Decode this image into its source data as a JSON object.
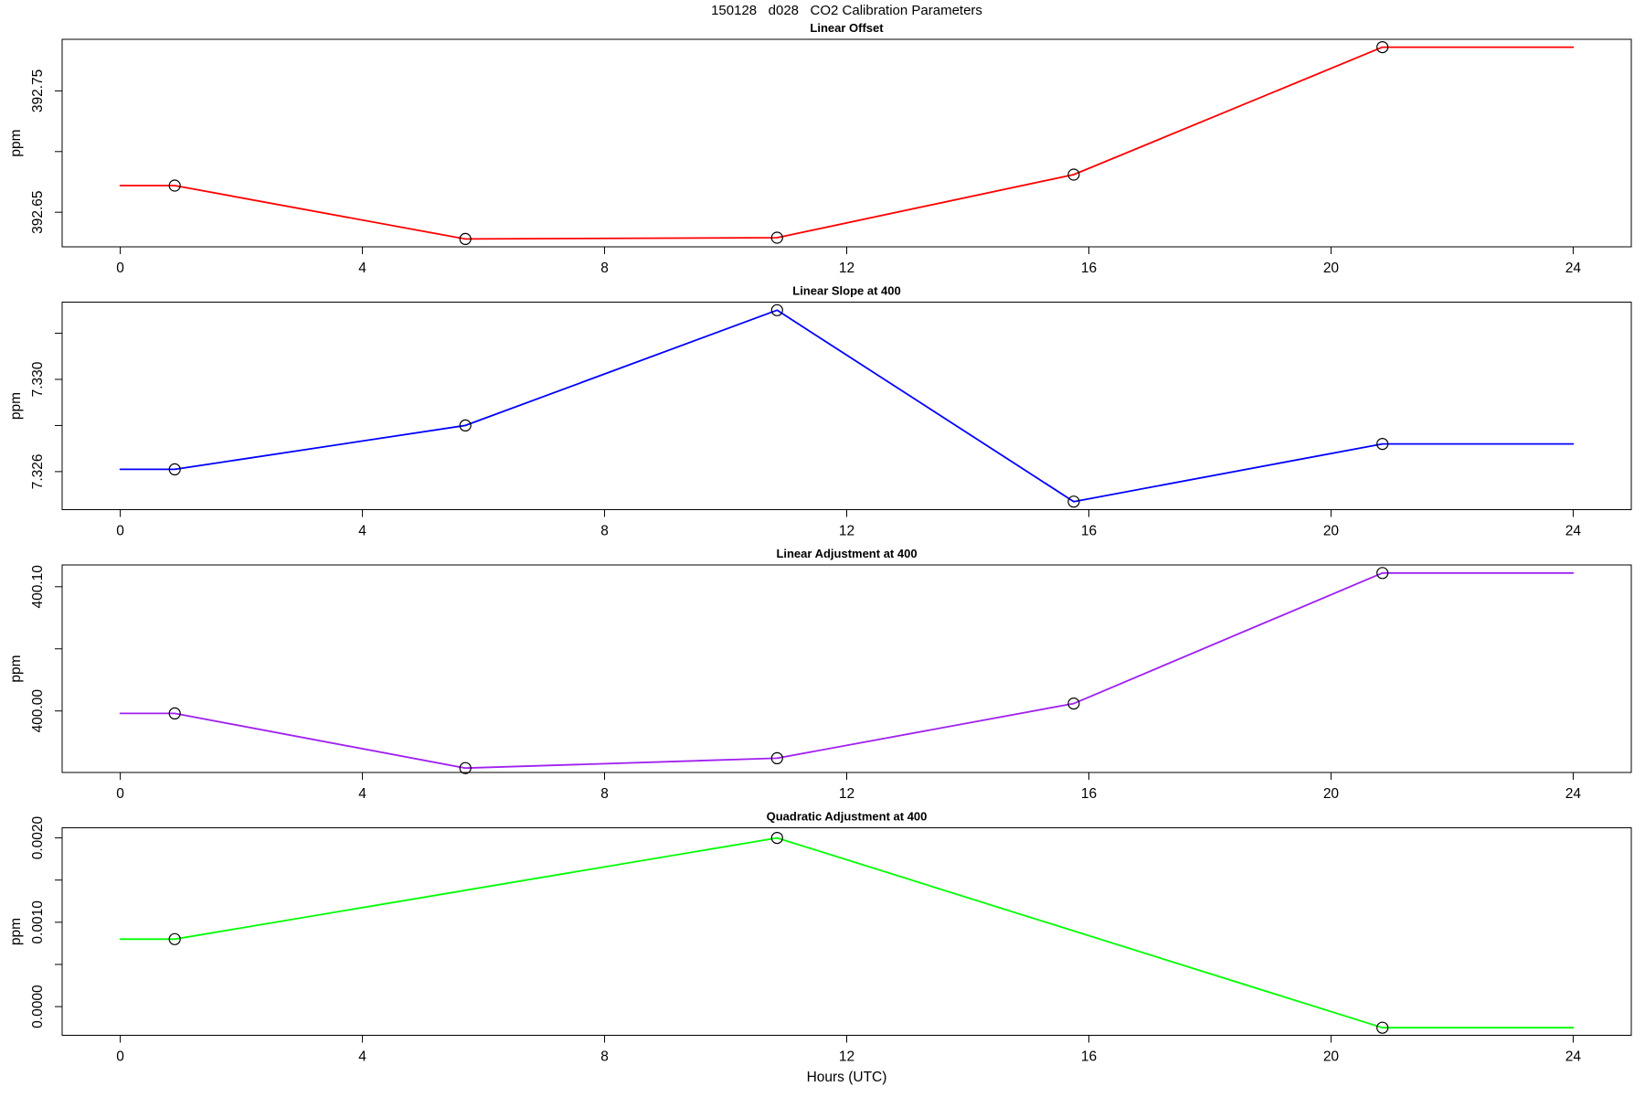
{
  "main_title": "150128   d028   CO2 Calibration Parameters",
  "x_axis_title": "Hours (UTC)",
  "chart_data": [
    {
      "type": "line",
      "title": "Linear Offset",
      "ylabel": "ppm",
      "color": "#FF0000",
      "marker": "open-circle",
      "x": [
        0.9,
        5.7,
        10.85,
        15.75,
        20.85
      ],
      "values": [
        392.672,
        392.628,
        392.629,
        392.681,
        392.786
      ],
      "line_extends_x": [
        0,
        24
      ],
      "xlim": [
        -0.96,
        24.96
      ],
      "ylim": [
        392.6215,
        392.7925
      ],
      "xticks": [
        0,
        4,
        8,
        12,
        16,
        20,
        24
      ],
      "yticks": [
        {
          "v": 392.65,
          "label": "392.65"
        },
        {
          "v": 392.7,
          "label": ""
        },
        {
          "v": 392.75,
          "label": "392.75"
        }
      ],
      "grid": false,
      "legend": null
    },
    {
      "type": "line",
      "title": "Linear Slope at 400",
      "ylabel": "ppm",
      "color": "#0000FF",
      "marker": "open-circle",
      "x": [
        0.9,
        5.7,
        10.85,
        15.75,
        20.85
      ],
      "values": [
        7.3261,
        7.328,
        7.333,
        7.3247,
        7.3272
      ],
      "line_extends_x": [
        0,
        24
      ],
      "xlim": [
        -0.96,
        24.96
      ],
      "ylim": [
        7.32435,
        7.33335
      ],
      "xticks": [
        0,
        4,
        8,
        12,
        16,
        20,
        24
      ],
      "yticks": [
        {
          "v": 7.326,
          "label": "7.326"
        },
        {
          "v": 7.328,
          "label": ""
        },
        {
          "v": 7.33,
          "label": "7.330"
        },
        {
          "v": 7.332,
          "label": ""
        }
      ],
      "grid": false,
      "legend": null
    },
    {
      "type": "line",
      "title": "Linear Adjustment at 400",
      "ylabel": "ppm",
      "color": "#A020F0",
      "marker": "open-circle",
      "x": [
        0.9,
        5.7,
        10.85,
        15.75,
        20.85
      ],
      "values": [
        399.998,
        399.954,
        399.962,
        400.006,
        400.111
      ],
      "line_extends_x": [
        0,
        24
      ],
      "xlim": [
        -0.96,
        24.96
      ],
      "ylim": [
        399.9505,
        400.1175
      ],
      "xticks": [
        0,
        4,
        8,
        12,
        16,
        20,
        24
      ],
      "yticks": [
        {
          "v": 400.0,
          "label": "400.00"
        },
        {
          "v": 400.05,
          "label": ""
        },
        {
          "v": 400.1,
          "label": "400.10"
        }
      ],
      "grid": false,
      "legend": null
    },
    {
      "type": "line",
      "title": "Quadratic Adjustment at 400",
      "ylabel": "ppm",
      "color": "#00FF00",
      "marker": "open-circle",
      "x": [
        0.9,
        10.85,
        20.85
      ],
      "values": [
        0.0008,
        0.002,
        -0.00025
      ],
      "line_extends_x": [
        0,
        24
      ],
      "xlim": [
        -0.96,
        24.96
      ],
      "ylim": [
        -0.00034,
        0.00212
      ],
      "xticks": [
        0,
        4,
        8,
        12,
        16,
        20,
        24
      ],
      "yticks": [
        {
          "v": 0.0,
          "label": "0.0000"
        },
        {
          "v": 0.0005,
          "label": ""
        },
        {
          "v": 0.001,
          "label": "0.0010"
        },
        {
          "v": 0.0015,
          "label": ""
        },
        {
          "v": 0.002,
          "label": "0.0020"
        }
      ],
      "grid": false,
      "legend": null
    }
  ]
}
